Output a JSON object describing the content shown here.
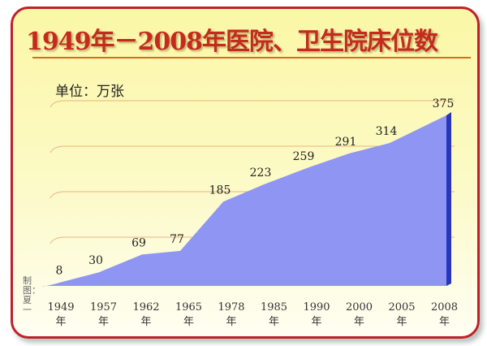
{
  "chart_data": {
    "type": "area",
    "title": "1949年－2008年医院、卫生院床位数",
    "unit_label": "单位：万张",
    "credit": "制图：夏一",
    "categories": [
      "1949年",
      "1957年",
      "1962年",
      "1965年",
      "1978年",
      "1985年",
      "1990年",
      "2000年",
      "2005年",
      "2008年"
    ],
    "x_years": [
      "1949",
      "1957",
      "1962",
      "1965",
      "1978",
      "1985",
      "1990",
      "2000",
      "2005",
      "2008"
    ],
    "year_suffix": "年",
    "values": [
      8,
      30,
      69,
      77,
      185,
      223,
      259,
      291,
      314,
      375
    ],
    "ylim": [
      0,
      375
    ],
    "grid": true,
    "colors": {
      "area": "#8f95f2",
      "area_side": "#2a36b8",
      "border": "#c0202a",
      "title": "#c52a1d",
      "grid": "#e9a070"
    }
  }
}
